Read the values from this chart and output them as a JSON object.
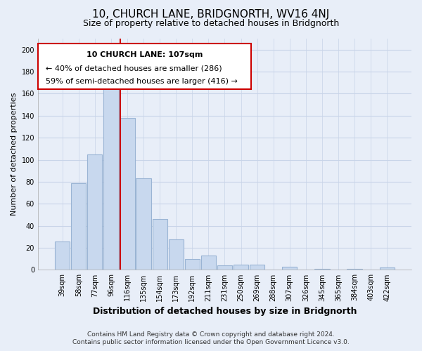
{
  "title": "10, CHURCH LANE, BRIDGNORTH, WV16 4NJ",
  "subtitle": "Size of property relative to detached houses in Bridgnorth",
  "xlabel": "Distribution of detached houses by size in Bridgnorth",
  "ylabel": "Number of detached properties",
  "bar_labels": [
    "39sqm",
    "58sqm",
    "77sqm",
    "96sqm",
    "116sqm",
    "135sqm",
    "154sqm",
    "173sqm",
    "192sqm",
    "211sqm",
    "231sqm",
    "250sqm",
    "269sqm",
    "288sqm",
    "307sqm",
    "326sqm",
    "345sqm",
    "365sqm",
    "384sqm",
    "403sqm",
    "422sqm"
  ],
  "bar_values": [
    26,
    79,
    105,
    167,
    138,
    83,
    46,
    28,
    10,
    13,
    4,
    5,
    5,
    0,
    3,
    0,
    1,
    0,
    1,
    0,
    2
  ],
  "bar_color": "#c8d8ee",
  "bar_edge_color": "#9ab4d4",
  "highlight_line_color": "#cc0000",
  "ylim": [
    0,
    210
  ],
  "yticks": [
    0,
    20,
    40,
    60,
    80,
    100,
    120,
    140,
    160,
    180,
    200
  ],
  "annotation_line1": "10 CHURCH LANE: 107sqm",
  "annotation_line2": "← 40% of detached houses are smaller (286)",
  "annotation_line3": "59% of semi-detached houses are larger (416) →",
  "footer_line1": "Contains HM Land Registry data © Crown copyright and database right 2024.",
  "footer_line2": "Contains public sector information licensed under the Open Government Licence v3.0.",
  "background_color": "#e8eef8",
  "grid_color": "#c8d4e8",
  "title_fontsize": 11,
  "subtitle_fontsize": 9,
  "xlabel_fontsize": 9,
  "ylabel_fontsize": 8,
  "tick_fontsize": 7,
  "annotation_fontsize": 8,
  "footer_fontsize": 6.5
}
